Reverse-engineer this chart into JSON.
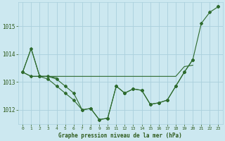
{
  "x": [
    0,
    1,
    2,
    3,
    4,
    5,
    6,
    7,
    8,
    9,
    10,
    11,
    12,
    13,
    14,
    15,
    16,
    17,
    18,
    19,
    20,
    21,
    22,
    23
  ],
  "line_upper_diag": [
    1013.35,
    1014.2,
    1013.2,
    1013.2,
    1013.15,
    null,
    null,
    null,
    null,
    null,
    null,
    null,
    null,
    null,
    null,
    null,
    null,
    null,
    null,
    null,
    null,
    null,
    null,
    1015.7
  ],
  "line_flat": [
    1013.35,
    1013.2,
    1013.2,
    1013.2,
    1013.2,
    1013.2,
    1013.2,
    1013.2,
    1013.2,
    1013.2,
    1013.2,
    1013.2,
    1013.2,
    1013.2,
    1013.2,
    1013.2,
    1013.2,
    1013.2,
    1013.2,
    1013.55,
    1013.6,
    null,
    null,
    1015.7
  ],
  "line_mid": [
    1013.35,
    1013.2,
    1013.2,
    1013.2,
    1013.1,
    1012.85,
    1012.6,
    1012.0,
    1012.05,
    1011.65,
    1011.7,
    1012.85,
    1012.6,
    1012.75,
    1012.7,
    1012.2,
    1012.25,
    1012.35,
    1012.85,
    1013.35,
    1013.8,
    null,
    null,
    1015.7
  ],
  "line_main": [
    1013.35,
    1014.2,
    1013.2,
    1013.1,
    1012.85,
    1012.6,
    1012.35,
    1012.0,
    1012.05,
    1011.65,
    1011.7,
    1012.85,
    1012.6,
    1012.75,
    1012.7,
    1012.2,
    1012.25,
    1012.35,
    1012.85,
    1013.35,
    1013.8,
    1015.1,
    1015.5,
    1015.7
  ],
  "ylim": [
    1011.5,
    1015.85
  ],
  "yticks": [
    1012,
    1013,
    1014,
    1015
  ],
  "xlabel": "Graphe pression niveau de la mer (hPa)",
  "bg_color": "#cce8f0",
  "grid_color": "#aad0dc",
  "line_color": "#2d6a2d",
  "label_color": "#2d5a1b",
  "figw": 3.2,
  "figh": 2.0,
  "dpi": 100
}
